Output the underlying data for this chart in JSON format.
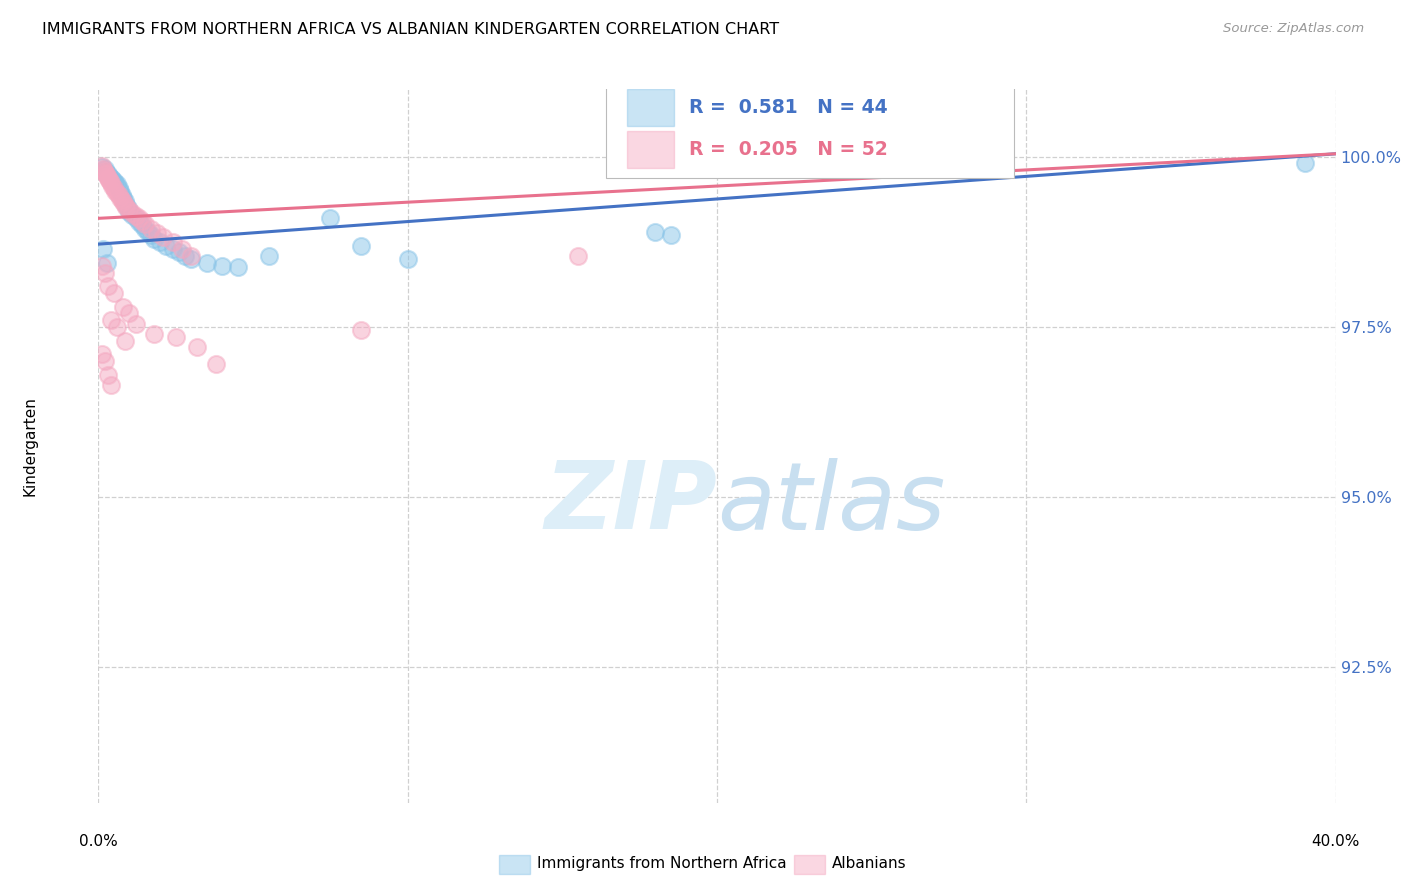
{
  "title": "IMMIGRANTS FROM NORTHERN AFRICA VS ALBANIAN KINDERGARTEN CORRELATION CHART",
  "source": "Source: ZipAtlas.com",
  "ylabel": "Kindergarten",
  "legend_label1": "Immigrants from Northern Africa",
  "legend_label2": "Albanians",
  "r1": 0.581,
  "n1": 44,
  "r2": 0.205,
  "n2": 52,
  "blue_color": "#89c4e8",
  "pink_color": "#f4a8c0",
  "blue_line_color": "#4472c4",
  "pink_line_color": "#e8718d",
  "blue_points": [
    [
      0.1,
      99.85
    ],
    [
      0.2,
      99.82
    ],
    [
      0.25,
      99.78
    ],
    [
      0.3,
      99.75
    ],
    [
      0.35,
      99.72
    ],
    [
      0.4,
      99.7
    ],
    [
      0.45,
      99.68
    ],
    [
      0.5,
      99.65
    ],
    [
      0.55,
      99.62
    ],
    [
      0.6,
      99.6
    ],
    [
      0.65,
      99.55
    ],
    [
      0.7,
      99.5
    ],
    [
      0.75,
      99.45
    ],
    [
      0.8,
      99.4
    ],
    [
      0.85,
      99.35
    ],
    [
      0.9,
      99.3
    ],
    [
      0.95,
      99.25
    ],
    [
      1.0,
      99.2
    ],
    [
      1.1,
      99.15
    ],
    [
      1.2,
      99.1
    ],
    [
      1.3,
      99.05
    ],
    [
      1.4,
      99.0
    ],
    [
      1.5,
      98.95
    ],
    [
      1.6,
      98.9
    ],
    [
      1.7,
      98.85
    ],
    [
      1.8,
      98.8
    ],
    [
      2.0,
      98.75
    ],
    [
      2.2,
      98.7
    ],
    [
      2.4,
      98.65
    ],
    [
      2.6,
      98.6
    ],
    [
      2.8,
      98.55
    ],
    [
      3.0,
      98.5
    ],
    [
      3.5,
      98.45
    ],
    [
      4.0,
      98.4
    ],
    [
      4.5,
      98.38
    ],
    [
      5.5,
      98.55
    ],
    [
      7.5,
      99.1
    ],
    [
      8.5,
      98.7
    ],
    [
      10.0,
      98.5
    ],
    [
      18.0,
      98.9
    ],
    [
      18.5,
      98.85
    ],
    [
      39.0,
      99.92
    ],
    [
      0.15,
      98.65
    ],
    [
      0.28,
      98.45
    ]
  ],
  "pink_points": [
    [
      0.1,
      99.87
    ],
    [
      0.15,
      99.83
    ],
    [
      0.18,
      99.8
    ],
    [
      0.22,
      99.77
    ],
    [
      0.25,
      99.75
    ],
    [
      0.28,
      99.72
    ],
    [
      0.32,
      99.7
    ],
    [
      0.35,
      99.67
    ],
    [
      0.38,
      99.65
    ],
    [
      0.42,
      99.62
    ],
    [
      0.45,
      99.58
    ],
    [
      0.5,
      99.55
    ],
    [
      0.55,
      99.5
    ],
    [
      0.6,
      99.47
    ],
    [
      0.65,
      99.44
    ],
    [
      0.7,
      99.4
    ],
    [
      0.75,
      99.37
    ],
    [
      0.8,
      99.34
    ],
    [
      0.85,
      99.3
    ],
    [
      0.9,
      99.27
    ],
    [
      1.0,
      99.22
    ],
    [
      1.1,
      99.18
    ],
    [
      1.2,
      99.14
    ],
    [
      1.3,
      99.1
    ],
    [
      1.4,
      99.06
    ],
    [
      1.5,
      99.02
    ],
    [
      1.7,
      98.95
    ],
    [
      1.9,
      98.88
    ],
    [
      2.1,
      98.82
    ],
    [
      2.4,
      98.75
    ],
    [
      2.7,
      98.65
    ],
    [
      3.0,
      98.55
    ],
    [
      0.12,
      98.4
    ],
    [
      0.2,
      98.3
    ],
    [
      0.3,
      98.1
    ],
    [
      0.5,
      98.0
    ],
    [
      0.8,
      97.8
    ],
    [
      1.0,
      97.7
    ],
    [
      1.2,
      97.55
    ],
    [
      1.8,
      97.4
    ],
    [
      2.5,
      97.35
    ],
    [
      3.2,
      97.2
    ],
    [
      3.8,
      96.95
    ],
    [
      0.4,
      97.6
    ],
    [
      0.6,
      97.5
    ],
    [
      0.85,
      97.3
    ],
    [
      8.5,
      97.45
    ],
    [
      15.5,
      98.55
    ],
    [
      0.12,
      97.1
    ],
    [
      0.22,
      97.0
    ],
    [
      0.32,
      96.8
    ],
    [
      0.42,
      96.65
    ]
  ],
  "blue_line": [
    [
      0,
      98.72
    ],
    [
      40,
      100.05
    ]
  ],
  "pink_line": [
    [
      0,
      99.1
    ],
    [
      40,
      100.05
    ]
  ],
  "xlim": [
    0,
    40.0
  ],
  "ylim": [
    90.5,
    101.0
  ],
  "yticks": [
    92.5,
    95.0,
    97.5,
    100.0
  ],
  "xtick_lines": [
    0,
    10,
    20,
    30,
    40
  ],
  "watermark_zip": "ZIP",
  "watermark_atlas": "atlas",
  "watermark_color": "#ddeef8",
  "background_color": "#ffffff"
}
